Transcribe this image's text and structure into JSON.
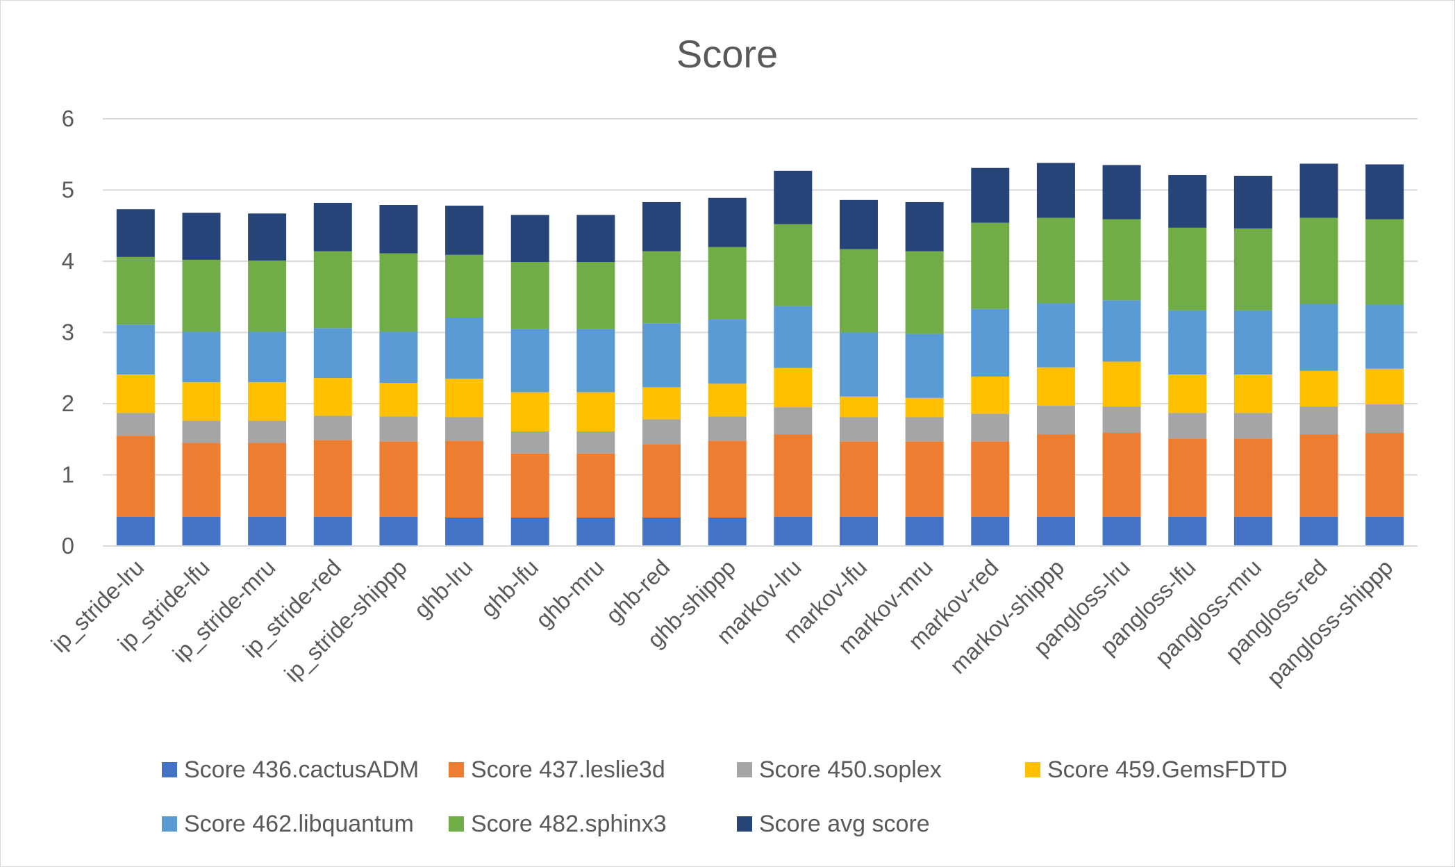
{
  "chart_data": {
    "type": "bar",
    "stacked": true,
    "title": "Score",
    "xlabel": "",
    "ylabel": "",
    "ylim": [
      0,
      6
    ],
    "y_ticks": [
      0,
      1,
      2,
      3,
      4,
      5,
      6
    ],
    "grid": true,
    "legend_position": "bottom",
    "categories": [
      "ip_stride-lru",
      "ip_stride-lfu",
      "ip_stride-mru",
      "ip_stride-red",
      "ip_stride-shippp",
      "ghb-lru",
      "ghb-lfu",
      "ghb-mru",
      "ghb-red",
      "ghb-shippp",
      "markov-lru",
      "markov-lfu",
      "markov-mru",
      "markov-red",
      "markov-shippp",
      "pangloss-lru",
      "pangloss-lfu",
      "pangloss-mru",
      "pangloss-red",
      "pangloss-shippp"
    ],
    "series": [
      {
        "name": "Score 436.cactusADM",
        "color": "#4472C4",
        "values": [
          0.41,
          0.41,
          0.41,
          0.41,
          0.41,
          0.4,
          0.4,
          0.4,
          0.4,
          0.4,
          0.41,
          0.41,
          0.41,
          0.41,
          0.41,
          0.41,
          0.41,
          0.41,
          0.41,
          0.41
        ]
      },
      {
        "name": "Score 437.leslie3d",
        "color": "#ED7D31",
        "values": [
          1.14,
          1.04,
          1.04,
          1.08,
          1.06,
          1.08,
          0.9,
          0.9,
          1.03,
          1.08,
          1.16,
          1.06,
          1.06,
          1.06,
          1.16,
          1.18,
          1.1,
          1.1,
          1.16,
          1.18
        ]
      },
      {
        "name": "Score 450.soplex",
        "color": "#A5A5A5",
        "values": [
          0.32,
          0.31,
          0.31,
          0.34,
          0.35,
          0.33,
          0.31,
          0.31,
          0.35,
          0.34,
          0.38,
          0.34,
          0.34,
          0.39,
          0.4,
          0.37,
          0.36,
          0.36,
          0.39,
          0.4
        ]
      },
      {
        "name": "Score 459.GemsFDTD",
        "color": "#FFC000",
        "values": [
          0.54,
          0.54,
          0.54,
          0.53,
          0.47,
          0.54,
          0.55,
          0.55,
          0.45,
          0.46,
          0.55,
          0.29,
          0.27,
          0.52,
          0.54,
          0.63,
          0.54,
          0.54,
          0.5,
          0.5
        ]
      },
      {
        "name": "Score 462.libquantum",
        "color": "#5B9BD5",
        "values": [
          0.7,
          0.71,
          0.71,
          0.7,
          0.72,
          0.86,
          0.89,
          0.89,
          0.9,
          0.9,
          0.87,
          0.9,
          0.9,
          0.95,
          0.9,
          0.86,
          0.9,
          0.9,
          0.94,
          0.9
        ]
      },
      {
        "name": "Score 482.sphinx3",
        "color": "#70AD47",
        "values": [
          0.95,
          1.01,
          1.0,
          1.08,
          1.1,
          0.88,
          0.94,
          0.94,
          1.01,
          1.02,
          1.15,
          1.17,
          1.16,
          1.21,
          1.2,
          1.14,
          1.16,
          1.15,
          1.21,
          1.2
        ]
      },
      {
        "name": "Score avg score",
        "color": "#264478",
        "values": [
          0.67,
          0.66,
          0.66,
          0.68,
          0.68,
          0.69,
          0.66,
          0.66,
          0.69,
          0.69,
          0.75,
          0.69,
          0.69,
          0.77,
          0.77,
          0.76,
          0.74,
          0.74,
          0.76,
          0.77
        ]
      }
    ]
  }
}
